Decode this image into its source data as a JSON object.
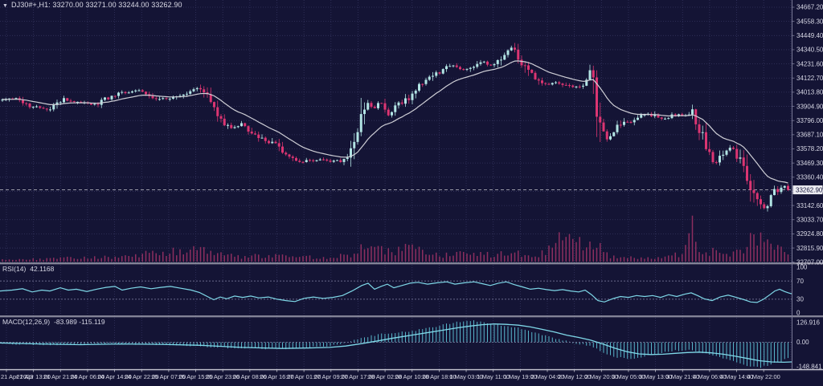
{
  "header": {
    "marker": "▼",
    "title": "DJ30#+,H1: 33270.00 33271.00 33244.00 33262.90"
  },
  "colors": {
    "bg": "#141435",
    "grid": "#34345e",
    "level": "#8585a8",
    "bull": "#b2e4e4",
    "bear": "#dc3572",
    "ma": "#cfcfd6",
    "indicator": "#7fd8e8",
    "histogram": "#5fc6da",
    "volume": "#8c2e5f",
    "separator_light": "#c0c0cc",
    "separator_dark": "#55556e",
    "axis_line": "#7a7a98",
    "text": "#d6d6e4",
    "badge_bg": "#ededf2",
    "badge_text": "#15153a",
    "price_line": "#c8c8d0"
  },
  "chart_data": {
    "type": "candlestick",
    "symbol": "DJ30#+",
    "timeframe": "H1",
    "ohlc": {
      "open": 33270.0,
      "high": 33271.0,
      "low": 33244.0,
      "close": 33262.9
    },
    "current_price": 33262.9,
    "current_price_label": "33262.90",
    "price_axis": {
      "top_value": 34667.2,
      "step": 108.9,
      "ticks": [
        "34667.20",
        "34558.30",
        "34449.40",
        "34340.50",
        "34231.60",
        "34122.70",
        "34013.80",
        "33904.90",
        "33796.00",
        "33687.10",
        "33578.20",
        "33469.30",
        "33360.40",
        "33251.50",
        "33142.60",
        "33033.70",
        "32924.80",
        "32815.90",
        "32707.00"
      ]
    },
    "time_axis": {
      "ticks": [
        "21 Apr 2023",
        "21 Apr 13:00",
        "21 Apr 21:00",
        "24 Apr 06:00",
        "24 Apr 14:00",
        "24 Apr 22:00",
        "25 Apr 07:00",
        "25 Apr 15:00",
        "25 Apr 23:00",
        "26 Apr 08:00",
        "26 Apr 16:00",
        "27 Apr 01:00",
        "27 Apr 09:00",
        "27 Apr 17:00",
        "28 Apr 02:00",
        "28 Apr 10:00",
        "28 Apr 18:00",
        "1 May 03:00",
        "1 May 11:00",
        "1 May 19:00",
        "2 May 04:00",
        "2 May 12:00",
        "2 May 20:00",
        "3 May 05:00",
        "3 May 13:00",
        "3 May 21:00",
        "4 May 06:00",
        "4 May 14:00",
        "4 May 22:00"
      ]
    },
    "price_path": [
      [
        0,
        33950
      ],
      [
        20,
        33970
      ],
      [
        40,
        33900
      ],
      [
        60,
        33885
      ],
      [
        80,
        33960
      ],
      [
        100,
        33930
      ],
      [
        120,
        33920
      ],
      [
        140,
        33990
      ],
      [
        160,
        34020
      ],
      [
        175,
        34035
      ],
      [
        190,
        33980
      ],
      [
        205,
        33960
      ],
      [
        220,
        33990
      ],
      [
        235,
        34020
      ],
      [
        248,
        34055
      ],
      [
        262,
        33920
      ],
      [
        275,
        33800
      ],
      [
        288,
        33740
      ],
      [
        302,
        33770
      ],
      [
        316,
        33690
      ],
      [
        330,
        33650
      ],
      [
        344,
        33600
      ],
      [
        358,
        33520
      ],
      [
        372,
        33470
      ],
      [
        386,
        33490
      ],
      [
        400,
        33500
      ],
      [
        414,
        33480
      ],
      [
        428,
        33500
      ],
      [
        442,
        33620
      ],
      [
        456,
        33950
      ],
      [
        464,
        33880
      ],
      [
        472,
        33940
      ],
      [
        482,
        33830
      ],
      [
        492,
        33890
      ],
      [
        502,
        33950
      ],
      [
        512,
        33990
      ],
      [
        522,
        34070
      ],
      [
        534,
        34120
      ],
      [
        548,
        34180
      ],
      [
        562,
        34220
      ],
      [
        576,
        34190
      ],
      [
        588,
        34215
      ],
      [
        602,
        34245
      ],
      [
        614,
        34215
      ],
      [
        626,
        34300
      ],
      [
        636,
        34355
      ],
      [
        646,
        34280
      ],
      [
        656,
        34190
      ],
      [
        668,
        34100
      ],
      [
        680,
        34070
      ],
      [
        692,
        34085
      ],
      [
        704,
        34065
      ],
      [
        716,
        34050
      ],
      [
        726,
        34080
      ],
      [
        736,
        34160
      ],
      [
        746,
        33760
      ],
      [
        756,
        33630
      ],
      [
        766,
        33730
      ],
      [
        776,
        33770
      ],
      [
        786,
        33800
      ],
      [
        796,
        33830
      ],
      [
        806,
        33845
      ],
      [
        816,
        33830
      ],
      [
        826,
        33800
      ],
      [
        836,
        33830
      ],
      [
        846,
        33845
      ],
      [
        854,
        33830
      ],
      [
        862,
        33860
      ],
      [
        870,
        33740
      ],
      [
        880,
        33540
      ],
      [
        890,
        33470
      ],
      [
        900,
        33560
      ],
      [
        910,
        33590
      ],
      [
        920,
        33500
      ],
      [
        930,
        33350
      ],
      [
        940,
        33200
      ],
      [
        950,
        33110
      ],
      [
        957,
        33170
      ],
      [
        965,
        33255
      ],
      [
        975,
        33290
      ],
      [
        985,
        33263
      ]
    ],
    "volume_path": [
      [
        0,
        3
      ],
      [
        30,
        4
      ],
      [
        60,
        3
      ],
      [
        90,
        5
      ],
      [
        120,
        6
      ],
      [
        150,
        5
      ],
      [
        170,
        8
      ],
      [
        185,
        12
      ],
      [
        200,
        10
      ],
      [
        215,
        14
      ],
      [
        230,
        10
      ],
      [
        245,
        16
      ],
      [
        260,
        12
      ],
      [
        275,
        9
      ],
      [
        290,
        7
      ],
      [
        305,
        6
      ],
      [
        320,
        8
      ],
      [
        335,
        6
      ],
      [
        350,
        9
      ],
      [
        365,
        7
      ],
      [
        380,
        6
      ],
      [
        395,
        5
      ],
      [
        410,
        6
      ],
      [
        425,
        7
      ],
      [
        440,
        10
      ],
      [
        455,
        22
      ],
      [
        465,
        16
      ],
      [
        480,
        12
      ],
      [
        495,
        14
      ],
      [
        510,
        16
      ],
      [
        525,
        12
      ],
      [
        540,
        10
      ],
      [
        555,
        8
      ],
      [
        570,
        10
      ],
      [
        585,
        12
      ],
      [
        600,
        9
      ],
      [
        615,
        8
      ],
      [
        630,
        12
      ],
      [
        645,
        10
      ],
      [
        660,
        8
      ],
      [
        675,
        10
      ],
      [
        690,
        20
      ],
      [
        700,
        30
      ],
      [
        710,
        36
      ],
      [
        718,
        28
      ],
      [
        726,
        22
      ],
      [
        734,
        18
      ],
      [
        742,
        26
      ],
      [
        750,
        14
      ],
      [
        760,
        6
      ],
      [
        775,
        4
      ],
      [
        790,
        5
      ],
      [
        805,
        4
      ],
      [
        820,
        5
      ],
      [
        835,
        6
      ],
      [
        845,
        10
      ],
      [
        855,
        18
      ],
      [
        862,
        44
      ],
      [
        870,
        12
      ],
      [
        880,
        10
      ],
      [
        890,
        14
      ],
      [
        900,
        10
      ],
      [
        910,
        8
      ],
      [
        920,
        12
      ],
      [
        930,
        22
      ],
      [
        938,
        30
      ],
      [
        946,
        26
      ],
      [
        954,
        20
      ],
      [
        962,
        14
      ],
      [
        970,
        16
      ],
      [
        978,
        12
      ],
      [
        985,
        10
      ]
    ],
    "rsi": {
      "label": "RSI(14)",
      "value": "42.1168",
      "scale": [
        "100",
        "70",
        "30",
        "0"
      ],
      "levels": [
        70,
        30
      ],
      "path": [
        [
          0,
          48
        ],
        [
          15,
          50
        ],
        [
          28,
          53
        ],
        [
          40,
          46
        ],
        [
          52,
          50
        ],
        [
          62,
          48
        ],
        [
          75,
          55
        ],
        [
          85,
          50
        ],
        [
          95,
          52
        ],
        [
          108,
          47
        ],
        [
          120,
          52
        ],
        [
          132,
          56
        ],
        [
          143,
          58
        ],
        [
          152,
          50
        ],
        [
          163,
          54
        ],
        [
          175,
          57
        ],
        [
          188,
          53
        ],
        [
          200,
          56
        ],
        [
          212,
          58
        ],
        [
          225,
          54
        ],
        [
          238,
          50
        ],
        [
          248,
          45
        ],
        [
          258,
          36
        ],
        [
          266,
          29
        ],
        [
          274,
          35
        ],
        [
          282,
          31
        ],
        [
          292,
          37
        ],
        [
          302,
          34
        ],
        [
          312,
          37
        ],
        [
          322,
          33
        ],
        [
          334,
          35
        ],
        [
          345,
          30
        ],
        [
          356,
          27
        ],
        [
          367,
          25
        ],
        [
          378,
          32
        ],
        [
          390,
          35
        ],
        [
          402,
          32
        ],
        [
          414,
          34
        ],
        [
          426,
          38
        ],
        [
          438,
          48
        ],
        [
          450,
          60
        ],
        [
          458,
          65
        ],
        [
          466,
          52
        ],
        [
          474,
          58
        ],
        [
          482,
          63
        ],
        [
          490,
          55
        ],
        [
          500,
          60
        ],
        [
          510,
          65
        ],
        [
          520,
          67
        ],
        [
          532,
          63
        ],
        [
          544,
          66
        ],
        [
          556,
          68
        ],
        [
          566,
          63
        ],
        [
          578,
          66
        ],
        [
          590,
          68
        ],
        [
          600,
          64
        ],
        [
          610,
          60
        ],
        [
          620,
          65
        ],
        [
          630,
          68
        ],
        [
          640,
          62
        ],
        [
          650,
          57
        ],
        [
          660,
          52
        ],
        [
          670,
          54
        ],
        [
          680,
          51
        ],
        [
          690,
          49
        ],
        [
          700,
          51
        ],
        [
          710,
          48
        ],
        [
          720,
          46
        ],
        [
          728,
          50
        ],
        [
          736,
          40
        ],
        [
          744,
          27
        ],
        [
          752,
          24
        ],
        [
          762,
          31
        ],
        [
          772,
          36
        ],
        [
          782,
          34
        ],
        [
          792,
          38
        ],
        [
          802,
          36
        ],
        [
          812,
          38
        ],
        [
          822,
          34
        ],
        [
          832,
          40
        ],
        [
          842,
          36
        ],
        [
          852,
          41
        ],
        [
          860,
          44
        ],
        [
          868,
          38
        ],
        [
          876,
          31
        ],
        [
          886,
          27
        ],
        [
          896,
          35
        ],
        [
          906,
          39
        ],
        [
          916,
          34
        ],
        [
          926,
          29
        ],
        [
          934,
          24
        ],
        [
          942,
          23
        ],
        [
          950,
          30
        ],
        [
          958,
          40
        ],
        [
          964,
          48
        ],
        [
          970,
          52
        ],
        [
          976,
          47
        ],
        [
          981,
          44
        ],
        [
          985,
          42
        ]
      ]
    },
    "macd": {
      "label": "MACD(12,26,9)",
      "value": "-83.989 -115.119",
      "scale": [
        "126.916",
        "0.00",
        "-148.841"
      ],
      "main_path": [
        [
          0,
          -8
        ],
        [
          50,
          -15
        ],
        [
          100,
          -12
        ],
        [
          150,
          -8
        ],
        [
          200,
          -15
        ],
        [
          250,
          -25
        ],
        [
          300,
          -35
        ],
        [
          350,
          -38
        ],
        [
          380,
          -30
        ],
        [
          410,
          -22
        ],
        [
          430,
          -5
        ],
        [
          450,
          25
        ],
        [
          470,
          45
        ],
        [
          490,
          55
        ],
        [
          510,
          65
        ],
        [
          530,
          80
        ],
        [
          550,
          100
        ],
        [
          570,
          120
        ],
        [
          585,
          127
        ],
        [
          600,
          120
        ],
        [
          615,
          105
        ],
        [
          630,
          95
        ],
        [
          645,
          85
        ],
        [
          660,
          65
        ],
        [
          675,
          45
        ],
        [
          690,
          25
        ],
        [
          705,
          5
        ],
        [
          720,
          -10
        ],
        [
          735,
          -20
        ],
        [
          750,
          -60
        ],
        [
          765,
          -85
        ],
        [
          780,
          -95
        ],
        [
          795,
          -90
        ],
        [
          810,
          -75
        ],
        [
          825,
          -60
        ],
        [
          840,
          -50
        ],
        [
          855,
          -45
        ],
        [
          870,
          -55
        ],
        [
          885,
          -75
        ],
        [
          900,
          -95
        ],
        [
          915,
          -115
        ],
        [
          930,
          -140
        ],
        [
          945,
          -148
        ],
        [
          960,
          -130
        ],
        [
          975,
          -105
        ],
        [
          985,
          -84
        ]
      ],
      "signal_path": [
        [
          0,
          -4
        ],
        [
          50,
          -10
        ],
        [
          100,
          -14
        ],
        [
          150,
          -10
        ],
        [
          200,
          -12
        ],
        [
          250,
          -18
        ],
        [
          300,
          -30
        ],
        [
          350,
          -36
        ],
        [
          380,
          -34
        ],
        [
          410,
          -30
        ],
        [
          430,
          -22
        ],
        [
          450,
          -8
        ],
        [
          470,
          8
        ],
        [
          490,
          25
        ],
        [
          510,
          40
        ],
        [
          530,
          55
        ],
        [
          550,
          70
        ],
        [
          570,
          85
        ],
        [
          585,
          95
        ],
        [
          600,
          103
        ],
        [
          615,
          107
        ],
        [
          630,
          105
        ],
        [
          645,
          100
        ],
        [
          660,
          90
        ],
        [
          675,
          75
        ],
        [
          690,
          60
        ],
        [
          705,
          42
        ],
        [
          720,
          28
        ],
        [
          735,
          12
        ],
        [
          750,
          -10
        ],
        [
          765,
          -35
        ],
        [
          780,
          -55
        ],
        [
          795,
          -68
        ],
        [
          810,
          -72
        ],
        [
          825,
          -70
        ],
        [
          840,
          -65
        ],
        [
          855,
          -60
        ],
        [
          870,
          -58
        ],
        [
          885,
          -62
        ],
        [
          900,
          -70
        ],
        [
          915,
          -82
        ],
        [
          930,
          -95
        ],
        [
          945,
          -108
        ],
        [
          960,
          -115
        ],
        [
          975,
          -117
        ],
        [
          985,
          -115
        ]
      ]
    }
  }
}
